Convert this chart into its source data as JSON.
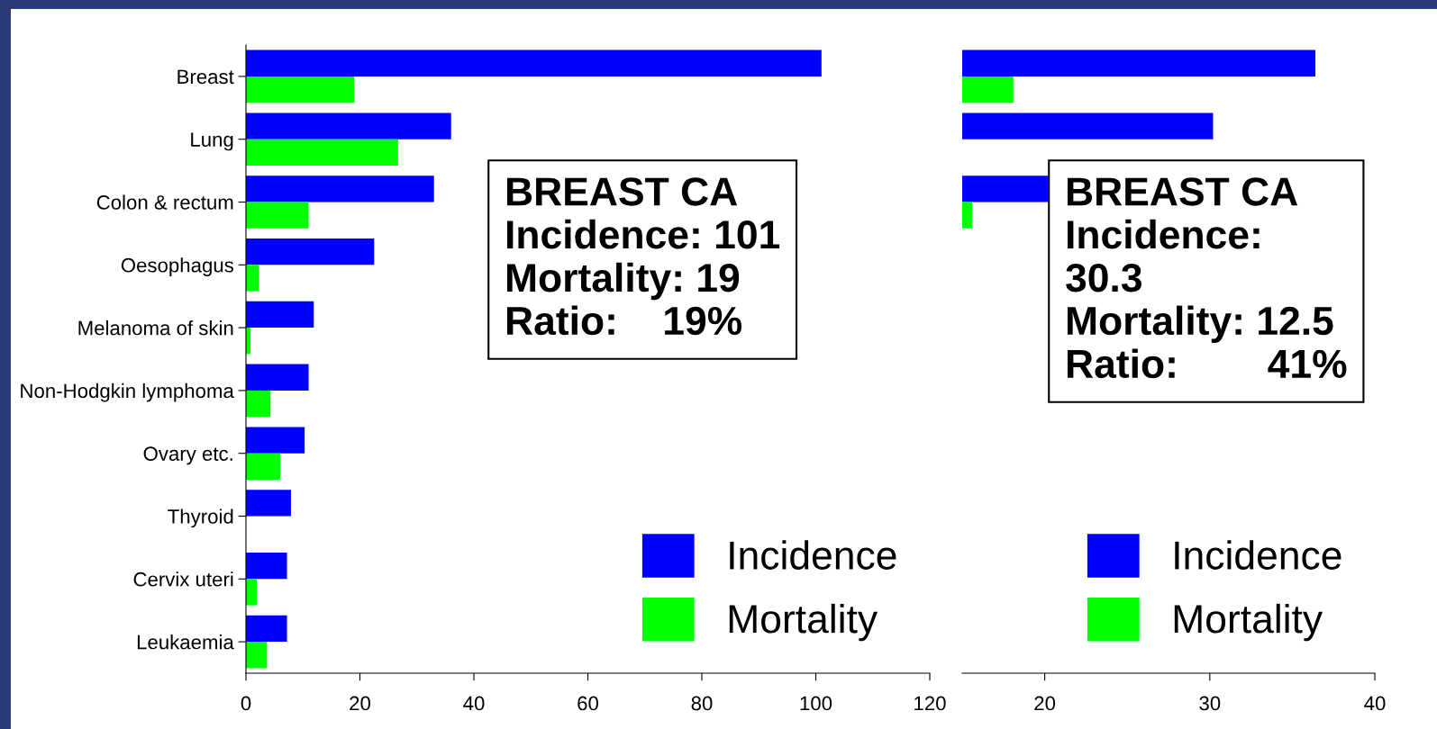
{
  "chart_data": [
    {
      "type": "bar",
      "orientation": "horizontal",
      "categories": [
        "Breast",
        "Lung",
        "Colon & rectum",
        "Oesophagus",
        "Melanoma of skin",
        "Non-Hodgkin lymphoma",
        "Ovary etc.",
        "Thyroid",
        "Cervix uteri",
        "Leukaemia"
      ],
      "series": [
        {
          "name": "Incidence",
          "color": "#0000ff",
          "values": [
            101,
            36,
            33,
            22.5,
            11.9,
            11,
            10.3,
            7.9,
            7.2,
            7.2
          ]
        },
        {
          "name": "Mortality",
          "color": "#00ff00",
          "values": [
            19,
            26.7,
            11,
            2.3,
            0.8,
            4.3,
            6,
            null,
            1.9,
            3.7
          ]
        }
      ],
      "xlim": [
        0,
        120
      ],
      "xticks": [
        0,
        20,
        40,
        60,
        80,
        100,
        120
      ],
      "legend": "bottom right",
      "annotations": [
        "BREAST CA\nIncidence: 101\nMortality: 19\nRatio:    19%"
      ]
    },
    {
      "type": "bar",
      "orientation": "horizontal",
      "categories": [
        null,
        null,
        null,
        null,
        null,
        null,
        null,
        null,
        null,
        null
      ],
      "series": [
        {
          "name": "Incidence",
          "color": "#0000ff",
          "values": [
            36.4,
            30.2,
            20.2,
            null,
            null,
            null,
            null,
            null,
            null,
            null
          ]
        },
        {
          "name": "Mortality",
          "color": "#00ff00",
          "values": [
            18.1,
            null,
            15.6,
            null,
            null,
            null,
            null,
            null,
            null,
            null
          ]
        }
      ],
      "xlim": [
        15,
        40
      ],
      "xticks": [
        20,
        30,
        40
      ],
      "tick_labels": "x",
      "legend": "bottom right",
      "annotations": [
        "BREAST CA\nIncidence:\n30.3\nMortality: 12.5\nRatio:        41%"
      ]
    }
  ]
}
